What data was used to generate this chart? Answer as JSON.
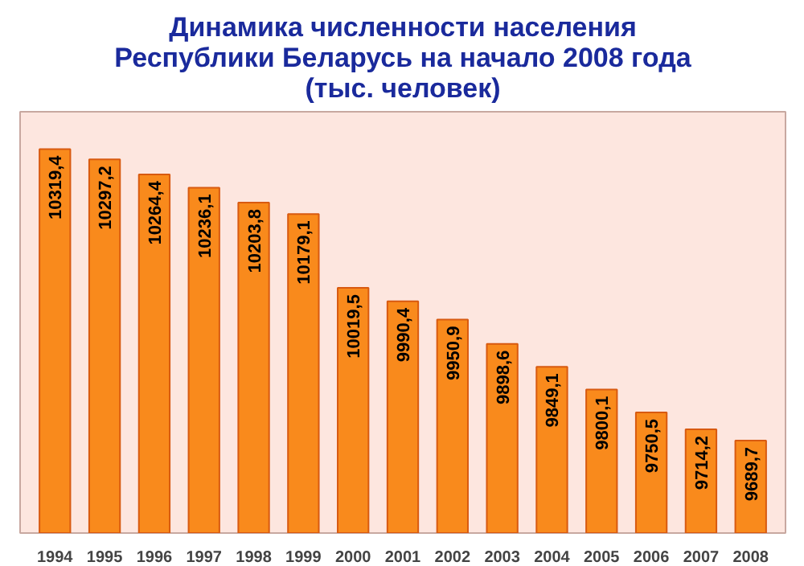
{
  "chart_data": {
    "type": "bar",
    "title": "Динамика численности населения\nРеспублики Беларусь на начало 2008 года\n(тыс. человек)",
    "categories": [
      "1994",
      "1995",
      "1996",
      "1997",
      "1998",
      "1999",
      "2000",
      "2001",
      "2002",
      "2003",
      "2004",
      "2005",
      "2006",
      "2007",
      "2008"
    ],
    "values": [
      10319.4,
      10297.2,
      10264.4,
      10236.1,
      10203.8,
      10179.1,
      10019.5,
      9990.4,
      9950.9,
      9898.6,
      9849.1,
      9800.1,
      9750.5,
      9714.2,
      9689.7
    ],
    "value_labels": [
      "10319,4",
      "10297,2",
      "10264,4",
      "10236,1",
      "10203,8",
      "10179,1",
      "10019,5",
      "9990,4",
      "9950,9",
      "9898,6",
      "9849,1",
      "9800,1",
      "9750,5",
      "9714,2",
      "9689,7"
    ],
    "color": "#f98a1c",
    "ylim": [
      9490,
      10400
    ],
    "tick_labels": "x"
  }
}
